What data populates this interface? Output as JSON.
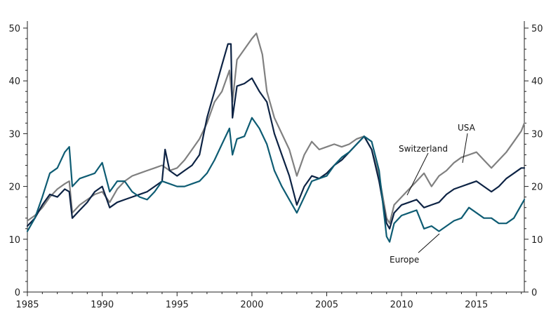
{
  "chart_data": {
    "type": "line",
    "title": "",
    "xlabel": "",
    "ylabel": "",
    "xlim": [
      1985,
      2018.2
    ],
    "ylim": [
      0,
      50
    ],
    "x_ticks": [
      1985,
      1990,
      1995,
      2000,
      2005,
      2010,
      2015
    ],
    "y_ticks": [
      0,
      10,
      20,
      30,
      40,
      50
    ],
    "grid": false,
    "legend": "none",
    "annotations": [
      {
        "text": "USA",
        "series": "USA"
      },
      {
        "text": "Switzerland",
        "series": "Switzerland"
      },
      {
        "text": "Europe",
        "series": "Europe"
      }
    ],
    "series": [
      {
        "name": "USA",
        "color": "#808080",
        "x": [
          1985.0,
          1985.5,
          1986.0,
          1986.5,
          1987.0,
          1987.5,
          1987.8,
          1988.0,
          1988.5,
          1989.0,
          1989.5,
          1990.0,
          1990.5,
          1991.0,
          1991.5,
          1992.0,
          1992.5,
          1993.0,
          1993.5,
          1994.0,
          1994.5,
          1995.0,
          1995.5,
          1996.0,
          1996.5,
          1997.0,
          1997.5,
          1998.0,
          1998.5,
          1998.7,
          1999.0,
          1999.5,
          2000.0,
          2000.3,
          2000.7,
          2001.0,
          2001.5,
          2002.0,
          2002.5,
          2003.0,
          2003.5,
          2004.0,
          2004.5,
          2005.0,
          2005.5,
          2006.0,
          2006.5,
          2007.0,
          2007.5,
          2008.0,
          2008.5,
          2009.0,
          2009.2,
          2009.5,
          2010.0,
          2010.5,
          2011.0,
          2011.5,
          2012.0,
          2012.5,
          2013.0,
          2013.5,
          2014.0,
          2014.5,
          2015.0,
          2015.5,
          2016.0,
          2016.5,
          2017.0,
          2017.5,
          2018.0,
          2018.2
        ],
        "values": [
          13.5,
          14.5,
          16.0,
          18.0,
          19.5,
          20.5,
          21.0,
          15.0,
          16.5,
          17.5,
          18.5,
          19.0,
          17.0,
          19.5,
          21.0,
          22.0,
          22.5,
          23.0,
          23.5,
          24.0,
          23.0,
          23.5,
          25.0,
          27.0,
          29.0,
          32.0,
          36.0,
          38.0,
          42.0,
          36.0,
          44.0,
          46.0,
          48.0,
          49.0,
          45.0,
          38.0,
          33.0,
          30.0,
          27.0,
          22.0,
          26.0,
          28.5,
          27.0,
          27.5,
          28.0,
          27.5,
          28.0,
          29.0,
          29.5,
          27.0,
          22.0,
          14.0,
          13.0,
          16.5,
          18.0,
          19.5,
          21.0,
          22.5,
          20.0,
          22.0,
          23.0,
          24.5,
          25.5,
          26.0,
          26.5,
          25.0,
          23.5,
          25.0,
          26.5,
          28.5,
          30.5,
          32.0
        ]
      },
      {
        "name": "Switzerland",
        "color": "#0d2344",
        "x": [
          1985.0,
          1985.5,
          1986.0,
          1986.5,
          1987.0,
          1987.5,
          1987.8,
          1988.0,
          1988.5,
          1989.0,
          1989.5,
          1990.0,
          1990.5,
          1991.0,
          1991.5,
          1992.0,
          1992.5,
          1993.0,
          1993.5,
          1994.0,
          1994.2,
          1994.5,
          1995.0,
          1995.5,
          1996.0,
          1996.5,
          1997.0,
          1997.5,
          1998.0,
          1998.4,
          1998.6,
          1998.7,
          1999.0,
          1999.5,
          2000.0,
          2000.5,
          2001.0,
          2001.5,
          2002.0,
          2002.5,
          2003.0,
          2003.5,
          2004.0,
          2004.5,
          2005.0,
          2005.5,
          2006.0,
          2006.5,
          2007.0,
          2007.5,
          2008.0,
          2008.5,
          2009.0,
          2009.2,
          2009.5,
          2010.0,
          2010.5,
          2011.0,
          2011.5,
          2012.0,
          2012.5,
          2013.0,
          2013.5,
          2014.0,
          2014.5,
          2015.0,
          2015.5,
          2016.0,
          2016.5,
          2017.0,
          2017.5,
          2018.0,
          2018.2
        ],
        "values": [
          12.5,
          14.0,
          16.5,
          18.5,
          18.0,
          19.5,
          19.0,
          14.0,
          15.5,
          17.0,
          19.0,
          20.0,
          16.0,
          17.0,
          17.5,
          18.0,
          18.5,
          19.0,
          20.0,
          21.0,
          27.0,
          23.0,
          22.0,
          23.0,
          24.0,
          26.0,
          33.0,
          38.0,
          43.0,
          47.0,
          47.0,
          33.0,
          39.0,
          39.5,
          40.5,
          38.0,
          36.0,
          30.0,
          26.0,
          22.0,
          16.5,
          20.0,
          22.0,
          21.5,
          22.5,
          24.0,
          25.0,
          26.5,
          28.0,
          29.5,
          27.0,
          21.0,
          13.0,
          12.0,
          15.0,
          16.5,
          17.0,
          17.5,
          16.0,
          16.5,
          17.0,
          18.5,
          19.5,
          20.0,
          20.5,
          21.0,
          20.0,
          19.0,
          20.0,
          21.5,
          22.5,
          23.5,
          23.5
        ]
      },
      {
        "name": "Europe",
        "color": "#0e5c73",
        "x": [
          1985.0,
          1985.5,
          1986.0,
          1986.5,
          1987.0,
          1987.5,
          1987.8,
          1988.0,
          1988.5,
          1989.0,
          1989.5,
          1990.0,
          1990.5,
          1991.0,
          1991.5,
          1992.0,
          1992.5,
          1993.0,
          1993.5,
          1994.0,
          1994.5,
          1995.0,
          1995.5,
          1996.0,
          1996.5,
          1997.0,
          1997.5,
          1998.0,
          1998.5,
          1998.7,
          1999.0,
          1999.5,
          2000.0,
          2000.5,
          2001.0,
          2001.5,
          2002.0,
          2002.5,
          2003.0,
          2003.5,
          2004.0,
          2004.5,
          2005.0,
          2005.5,
          2006.0,
          2006.5,
          2007.0,
          2007.5,
          2008.0,
          2008.5,
          2009.0,
          2009.2,
          2009.5,
          2010.0,
          2010.5,
          2011.0,
          2011.5,
          2012.0,
          2012.5,
          2013.0,
          2013.5,
          2014.0,
          2014.5,
          2015.0,
          2015.5,
          2016.0,
          2016.5,
          2017.0,
          2017.5,
          2018.0,
          2018.2
        ],
        "values": [
          11.5,
          14.0,
          18.0,
          22.5,
          23.5,
          26.5,
          27.5,
          20.0,
          21.5,
          22.0,
          22.5,
          24.5,
          19.0,
          21.0,
          21.0,
          19.0,
          18.0,
          17.5,
          19.0,
          21.0,
          20.5,
          20.0,
          20.0,
          20.5,
          21.0,
          22.5,
          25.0,
          28.0,
          31.0,
          26.0,
          29.0,
          29.5,
          33.0,
          31.0,
          28.0,
          23.0,
          20.0,
          17.5,
          15.0,
          18.0,
          21.0,
          21.5,
          22.0,
          24.0,
          25.5,
          26.5,
          28.0,
          29.5,
          28.5,
          23.0,
          10.5,
          9.5,
          13.0,
          14.5,
          15.0,
          15.5,
          12.0,
          12.5,
          11.5,
          12.5,
          13.5,
          14.0,
          16.0,
          15.0,
          14.0,
          14.0,
          13.0,
          13.0,
          14.0,
          16.5,
          17.5
        ]
      }
    ]
  }
}
